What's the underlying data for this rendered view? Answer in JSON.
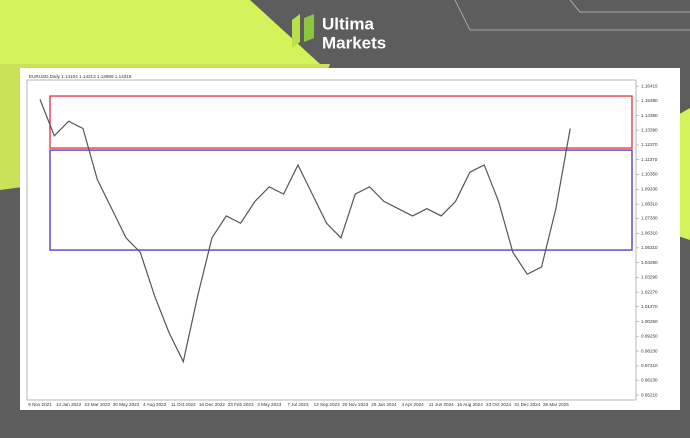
{
  "brand": {
    "line1": "Ultima",
    "line2": "Markets"
  },
  "chart_data": {
    "type": "line",
    "title": "EURUSD,Daily  1.14104 1.14213 1.13989 1.14318",
    "categories": [
      "9 Nov 2021",
      null,
      "14 Jan 2022",
      null,
      "23 Mar 2022",
      null,
      "30 May 2022",
      null,
      "4 Aug 2022",
      null,
      "11 Oct 2022",
      null,
      "16 Dec 2022",
      null,
      "23 Feb 2023",
      null,
      "3 May 2023",
      null,
      "7 Jul 2023",
      null,
      "13 Sep 2023",
      null,
      "20 Nov 2023",
      null,
      "29 Jan 2024",
      null,
      "4 Apr 2024",
      null,
      "11 Jun 2024",
      null,
      "16 Aug 2024",
      null,
      "23 Oct 2024",
      null,
      "31 Dec 2024",
      null,
      "28 Mar 2025",
      null
    ],
    "series": [
      {
        "color": "#555555",
        "values": [
          1.155,
          1.13,
          1.14,
          1.135,
          1.1,
          1.08,
          1.06,
          1.05,
          1.02,
          0.995,
          0.975,
          1.02,
          1.06,
          1.075,
          1.07,
          1.085,
          1.095,
          1.09,
          1.11,
          1.09,
          1.07,
          1.06,
          1.09,
          1.095,
          1.085,
          1.08,
          1.075,
          1.08,
          1.075,
          1.085,
          1.105,
          1.11,
          1.085,
          1.05,
          1.035,
          1.04,
          1.08,
          1.135
        ]
      }
    ],
    "zones": [
      {
        "color": "#e0303a",
        "ylim": [
          1.1216,
          1.1573
        ]
      },
      {
        "color": "#4a2fd0",
        "ylim": [
          1.0516,
          1.1202
        ]
      }
    ],
    "ylim": [
      0.9487,
      1.1683
    ],
    "yticks": [
      {
        "value": 1.16415,
        "label": "1.16415"
      },
      {
        "value": 1.1539,
        "label": "1.15390"
      },
      {
        "value": 1.1438,
        "label": "1.14380"
      },
      {
        "value": 1.1339,
        "label": "1.13390"
      },
      {
        "value": 1.1237,
        "label": "1.12370"
      },
      {
        "value": 1.1137,
        "label": "1.11370"
      },
      {
        "value": 1.1035,
        "label": "1.10350"
      },
      {
        "value": 1.0933,
        "label": "1.09330"
      },
      {
        "value": 1.0831,
        "label": "1.08310"
      },
      {
        "value": 1.0733,
        "label": "1.07330"
      },
      {
        "value": 1.0631,
        "label": "1.06310"
      },
      {
        "value": 1.0531,
        "label": "1.05310"
      },
      {
        "value": 1.0429,
        "label": "1.04290"
      },
      {
        "value": 1.0329,
        "label": "1.03290"
      },
      {
        "value": 1.0227,
        "label": "1.02270"
      },
      {
        "value": 1.0127,
        "label": "1.01270"
      },
      {
        "value": 1.0025,
        "label": "1.00250"
      },
      {
        "value": 0.9925,
        "label": "0.99250"
      },
      {
        "value": 0.9823,
        "label": "0.98230"
      },
      {
        "value": 0.9721,
        "label": "0.97210"
      },
      {
        "value": 0.9623,
        "label": "0.96230"
      },
      {
        "value": 0.9521,
        "label": "0.95210"
      }
    ]
  }
}
